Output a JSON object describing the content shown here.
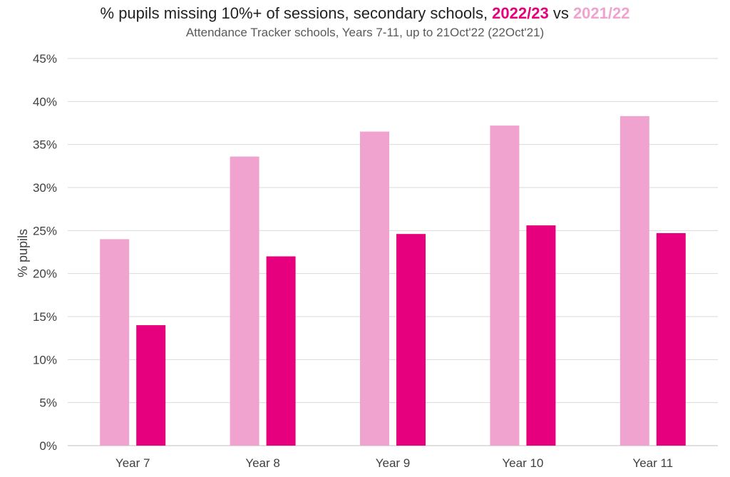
{
  "title": {
    "prefix": "% pupils missing 10%+ of sessions, secondary schools, ",
    "series_a": "2022/23",
    "connector": " vs ",
    "series_b": "2021/22"
  },
  "subtitle": "Attendance Tracker schools, Years 7-11, up to 21Oct'22 (22Oct'21)",
  "colors": {
    "series_2021_22": "#f0a3cf",
    "series_2022_23": "#e6007e",
    "grid": "#d9d9d9"
  },
  "chart_data": {
    "type": "bar",
    "categories": [
      "Year 7",
      "Year 8",
      "Year 9",
      "Year 10",
      "Year 11"
    ],
    "series": [
      {
        "name": "2021/22",
        "values": [
          24.0,
          33.6,
          36.5,
          37.2,
          38.3
        ]
      },
      {
        "name": "2022/23",
        "values": [
          14.0,
          22.0,
          24.6,
          25.6,
          24.7
        ]
      }
    ],
    "ylabel": "% pupils",
    "xlabel": "",
    "ylim": [
      0,
      45
    ],
    "yticks": [
      "0%",
      "5%",
      "10%",
      "15%",
      "20%",
      "25%",
      "30%",
      "35%",
      "40%",
      "45%"
    ],
    "grid": true
  }
}
